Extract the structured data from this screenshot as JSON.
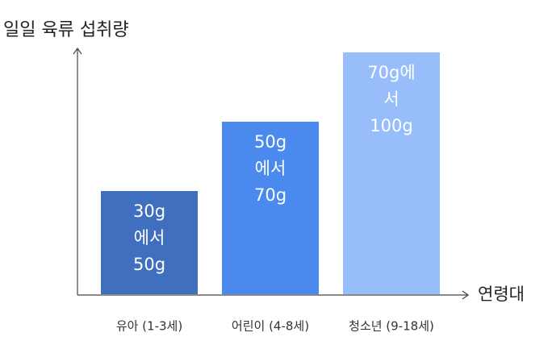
{
  "title": "일일 육류 섭취량",
  "x_axis_label": "연령대",
  "bars": [
    {
      "category": "유아 (1-3세)",
      "label_lines": [
        "30g",
        "에서",
        "50g"
      ],
      "color": "#416fbf"
    },
    {
      "category": "어린이 (4-8세)",
      "label_lines": [
        "50g",
        "에서",
        "70g"
      ],
      "color": "#4a8aee"
    },
    {
      "category": "청소년 (9-18세)",
      "label_lines": [
        "70g에",
        "서",
        "100g"
      ],
      "color": "#97bdfb"
    }
  ]
}
